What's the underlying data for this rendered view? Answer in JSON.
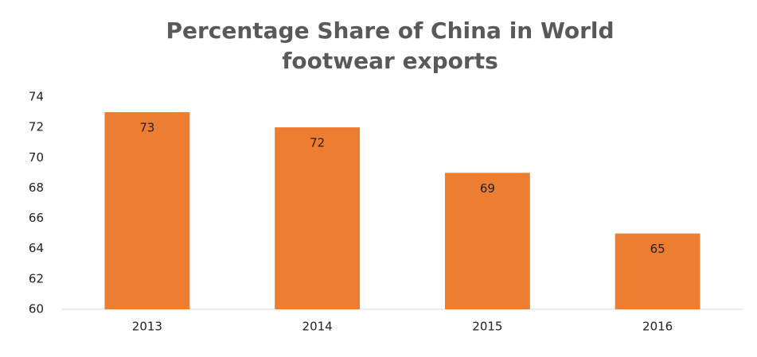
{
  "chart_data": {
    "type": "bar",
    "title": "Percentage Share of China in World footwear exports",
    "categories": [
      "2013",
      "2014",
      "2015",
      "2016"
    ],
    "values": [
      73,
      72,
      69,
      65
    ],
    "color": "#ed7d31",
    "ylim": [
      60,
      74
    ],
    "yticks": [
      60,
      62,
      64,
      66,
      68,
      70,
      72,
      74
    ],
    "grid": false
  }
}
